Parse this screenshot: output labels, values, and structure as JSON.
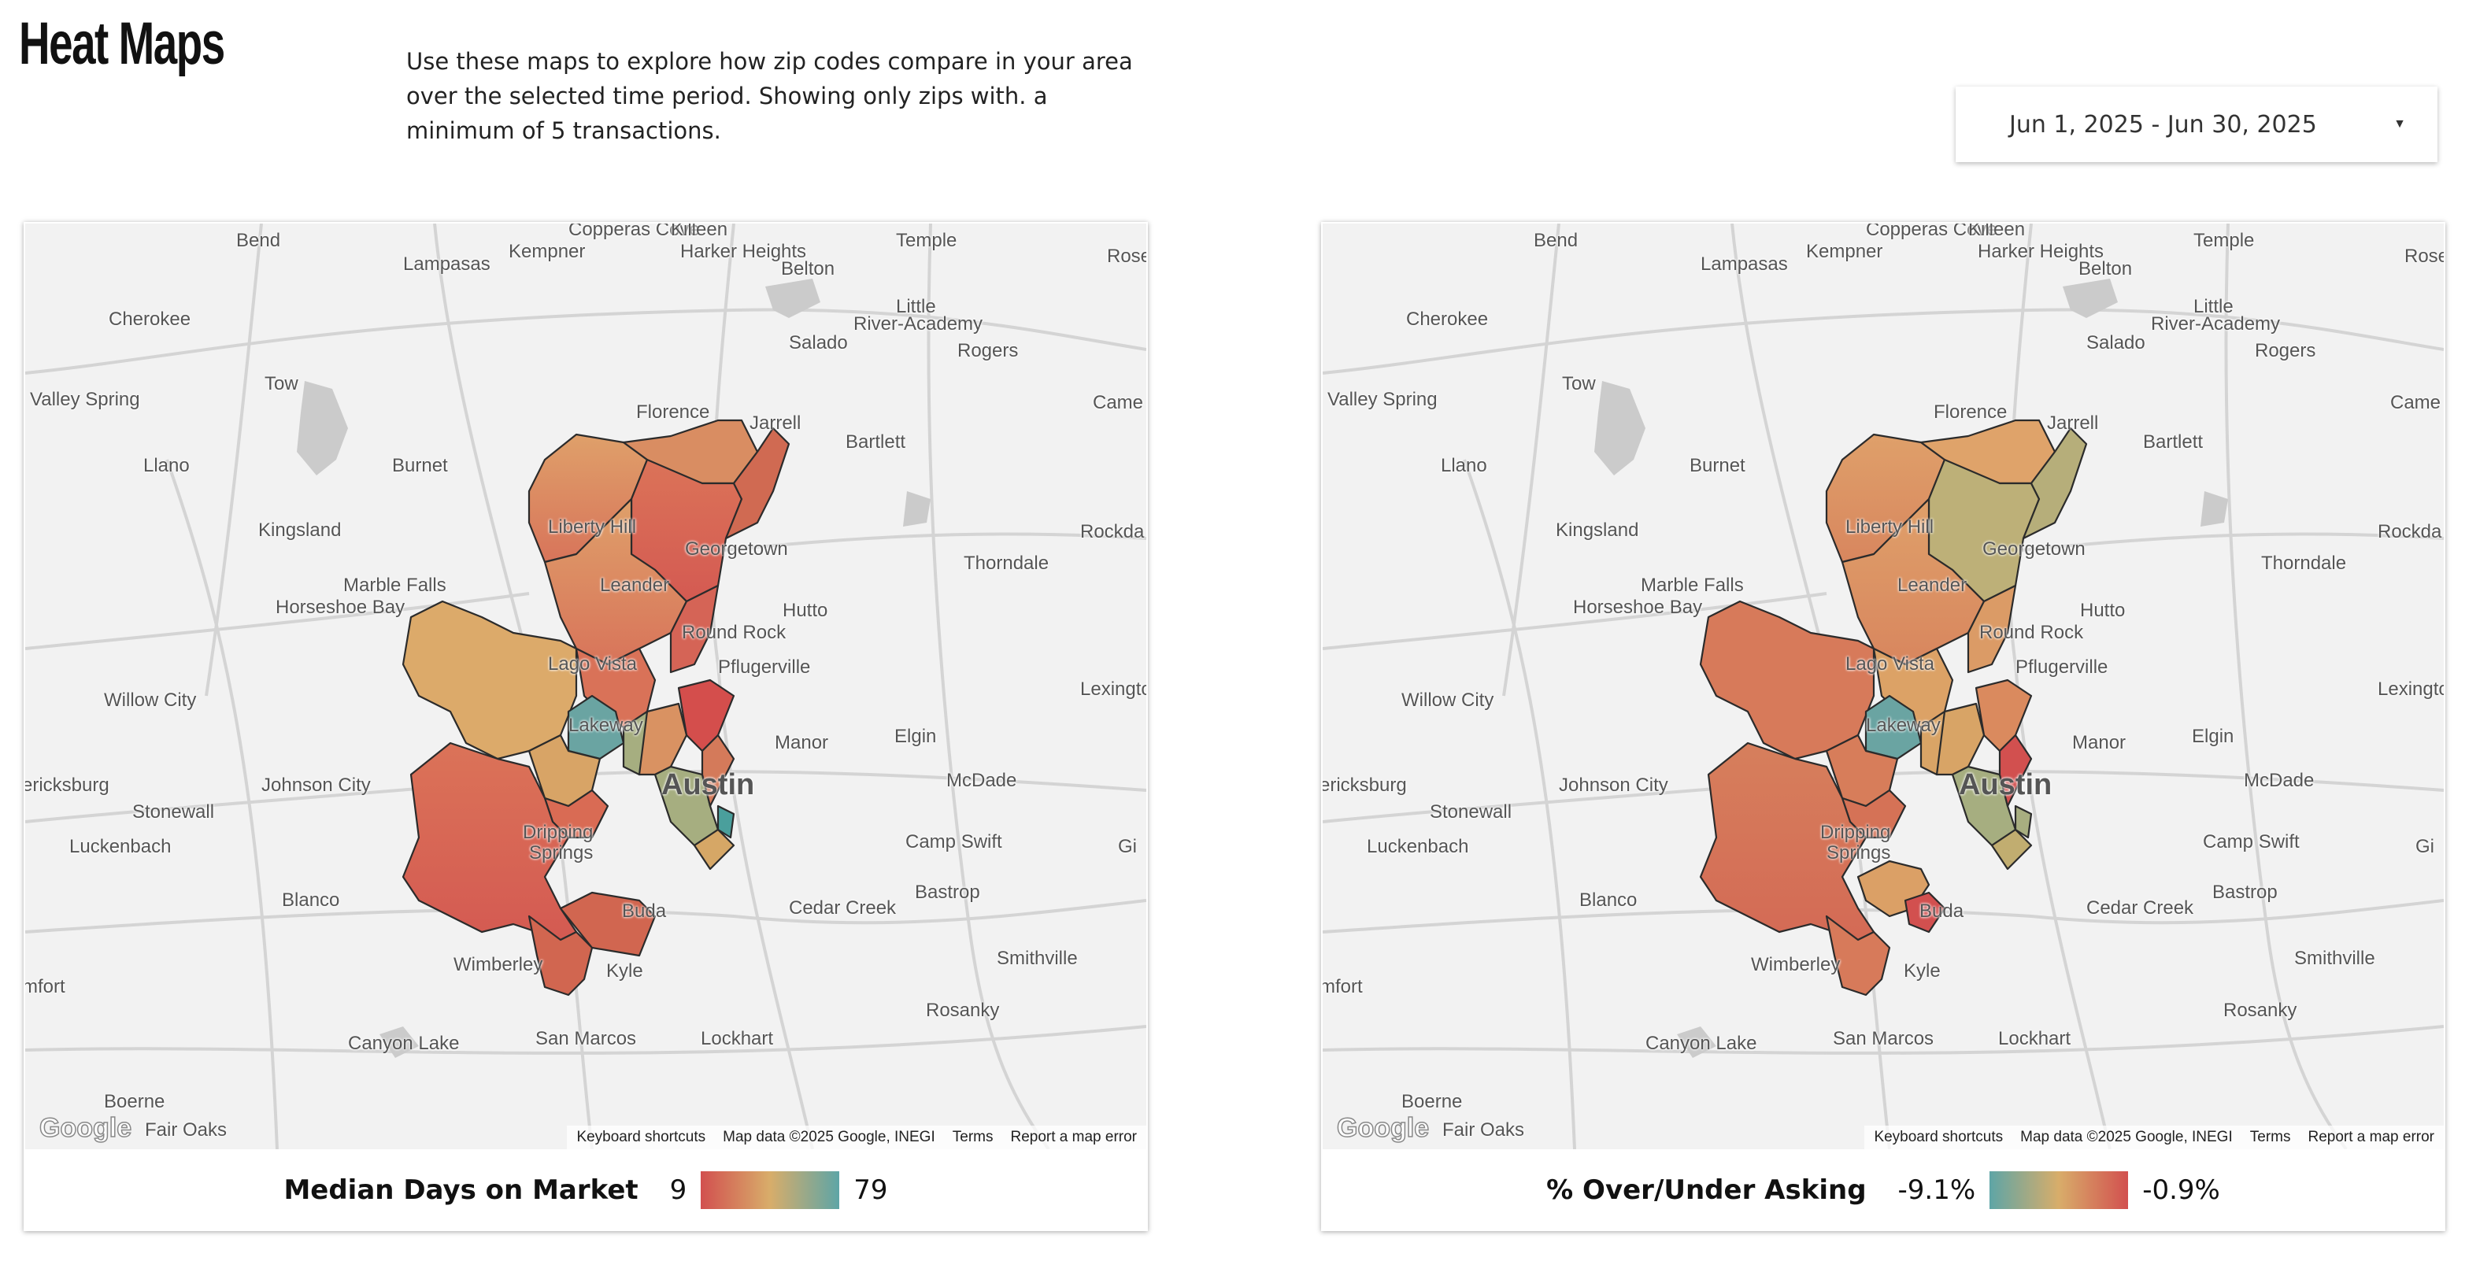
{
  "header": {
    "title": "Heat Maps",
    "description": "Use these maps to explore how zip codes compare in your area over the selected time period.  Showing only zips with. a minimum of 5 transactions.",
    "date_range": "Jun 1, 2025 - Jun 30, 2025"
  },
  "colors": {
    "red": "#d25a52",
    "orange": "#df9a5c",
    "tan": "#d8ad6a",
    "sage": "#a8ae80",
    "teal": "#6ba5a3",
    "map_bg": "#f2f2f2",
    "roads": "#d4d4d4",
    "water": "#c9c9c9"
  },
  "map_common": {
    "place_labels": [
      "Bend",
      "Lampasas",
      "Copperas Cove",
      "Killeen",
      "Kempner",
      "Harker Heights",
      "Temple",
      "Rose",
      "Belton",
      "Little",
      "River-Academy",
      "Salado",
      "Cherokee",
      "Rogers",
      "Tow",
      "Valley Spring",
      "Florence",
      "Jarrell",
      "Bartlett",
      "Came",
      "Llano",
      "Burnet",
      "Liberty Hill",
      "Georgetown",
      "Kingsland",
      "Rockda",
      "Marble Falls",
      "Thorndale",
      "Horseshoe Bay",
      "Leander",
      "Hutto",
      "Round Rock",
      "Lago Vista",
      "Pflugerville",
      "Willow City",
      "Lakeway",
      "Lexingto",
      "Manor",
      "Elgin",
      "ericksburg",
      "Johnson City",
      "Austin",
      "McDade",
      "Stonewall",
      "Luckenbach",
      "Dripping",
      "Springs",
      "Camp Swift",
      "Gi",
      "Blanco",
      "Buda",
      "Cedar Creek",
      "Bastrop",
      "Wimberley",
      "Kyle",
      "Smithville",
      "mfort",
      "Rosanky",
      "Canyon Lake",
      "San Marcos",
      "Lockhart",
      "Boerne",
      "Fair Oaks"
    ],
    "google_logo": "Google",
    "attribution": [
      "Keyboard shortcuts",
      "Map data ©2025 Google, INEGI",
      "Terms",
      "Report a map error"
    ]
  },
  "maps": [
    {
      "metric": "Median Days on Market",
      "legend_min": "9",
      "legend_max": "79",
      "ramp": "red-to-teal"
    },
    {
      "metric": "% Over/Under Asking",
      "legend_min": "-9.1%",
      "legend_max": "-0.9%",
      "ramp": "teal-to-red"
    }
  ]
}
